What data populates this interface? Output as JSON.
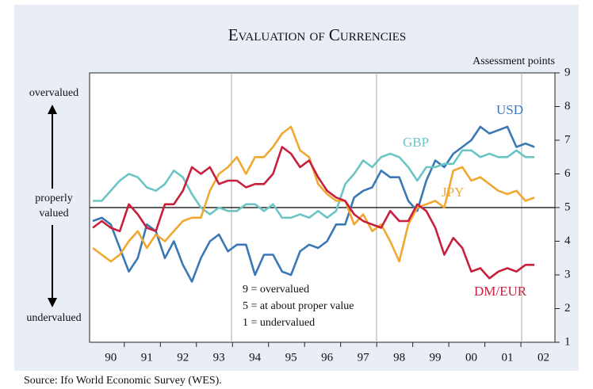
{
  "chart_data": {
    "type": "line",
    "title": "Evaluation of Currencies",
    "y_axis_label": "Assessment points",
    "source": "Source: Ifo World Economic Survey (WES).",
    "annotations": {
      "top": "overvalued",
      "middle": [
        "properly",
        "valued"
      ],
      "bottom": "undervalued"
    },
    "notes": [
      "9 = overvalued",
      "5 = at about proper value",
      "1 = undervalued"
    ],
    "categories": [
      null,
      null,
      "90",
      null,
      null,
      null,
      "91",
      null,
      null,
      null,
      "92",
      null,
      null,
      null,
      "93",
      null,
      null,
      null,
      "94",
      null,
      null,
      null,
      "95",
      null,
      null,
      null,
      "96",
      null,
      null,
      null,
      "97",
      null,
      null,
      null,
      "98",
      null,
      null,
      null,
      "99",
      null,
      null,
      null,
      "00",
      null,
      null,
      null,
      "01",
      null,
      null,
      null,
      "02"
    ],
    "series": [
      {
        "name": "USD",
        "color": "#3a78b5",
        "values": [
          4.6,
          4.7,
          4.5,
          3.8,
          3.1,
          3.5,
          4.5,
          4.3,
          3.5,
          4.0,
          3.3,
          2.8,
          3.5,
          4.0,
          4.2,
          3.7,
          3.9,
          3.9,
          3.0,
          3.6,
          3.6,
          3.1,
          3.0,
          3.7,
          3.9,
          3.8,
          4.0,
          4.5,
          4.5,
          5.3,
          5.5,
          5.6,
          6.1,
          5.9,
          5.9,
          5.2,
          4.9,
          5.8,
          6.4,
          6.2,
          6.6,
          6.8,
          7.0,
          7.4,
          7.2,
          7.3,
          7.4,
          6.8,
          6.9,
          6.8,
          null
        ]
      },
      {
        "name": "GBP",
        "color": "#6cc5c5",
        "values": [
          5.2,
          5.2,
          5.5,
          5.8,
          6.0,
          5.9,
          5.6,
          5.5,
          5.7,
          6.1,
          5.9,
          5.4,
          5.0,
          4.8,
          5.0,
          4.9,
          4.9,
          5.1,
          5.1,
          4.9,
          5.1,
          4.7,
          4.7,
          4.8,
          4.7,
          4.9,
          4.7,
          4.9,
          5.7,
          6.0,
          6.4,
          6.2,
          6.5,
          6.6,
          6.5,
          6.2,
          5.8,
          6.2,
          6.2,
          6.3,
          6.3,
          6.7,
          6.7,
          6.5,
          6.6,
          6.5,
          6.5,
          6.7,
          6.5,
          6.5,
          null
        ]
      },
      {
        "name": "JPY",
        "color": "#f0a830",
        "values": [
          3.8,
          3.6,
          3.4,
          3.6,
          4.0,
          4.3,
          3.8,
          4.2,
          4.0,
          4.3,
          4.6,
          4.7,
          4.7,
          5.5,
          6.0,
          6.2,
          6.5,
          6.0,
          6.5,
          6.5,
          6.8,
          7.2,
          7.4,
          6.7,
          6.5,
          5.7,
          5.4,
          5.2,
          5.2,
          4.5,
          4.8,
          4.3,
          4.5,
          4.0,
          3.4,
          4.5,
          5.0,
          5.1,
          5.2,
          5.0,
          6.1,
          6.2,
          5.8,
          5.9,
          5.7,
          5.5,
          5.4,
          5.5,
          5.2,
          5.3,
          null
        ]
      },
      {
        "name": "DM/EUR",
        "color": "#c8203c",
        "values": [
          4.4,
          4.6,
          4.4,
          4.3,
          5.1,
          4.8,
          4.4,
          4.3,
          5.1,
          5.1,
          5.5,
          6.2,
          6.0,
          6.2,
          5.7,
          5.8,
          5.8,
          5.6,
          5.7,
          5.7,
          6.0,
          6.8,
          6.6,
          6.2,
          6.4,
          5.9,
          5.5,
          5.3,
          5.2,
          4.8,
          4.6,
          4.5,
          4.4,
          4.9,
          4.6,
          4.6,
          5.1,
          4.9,
          4.4,
          3.6,
          4.1,
          3.8,
          3.1,
          3.2,
          2.9,
          3.1,
          3.2,
          3.1,
          3.3,
          3.3,
          null
        ]
      }
    ],
    "reference_line": 5,
    "ylim": [
      1,
      9
    ],
    "yticks": [
      1,
      2,
      3,
      4,
      5,
      6,
      7,
      8,
      9
    ],
    "y_axis_side": "right"
  }
}
